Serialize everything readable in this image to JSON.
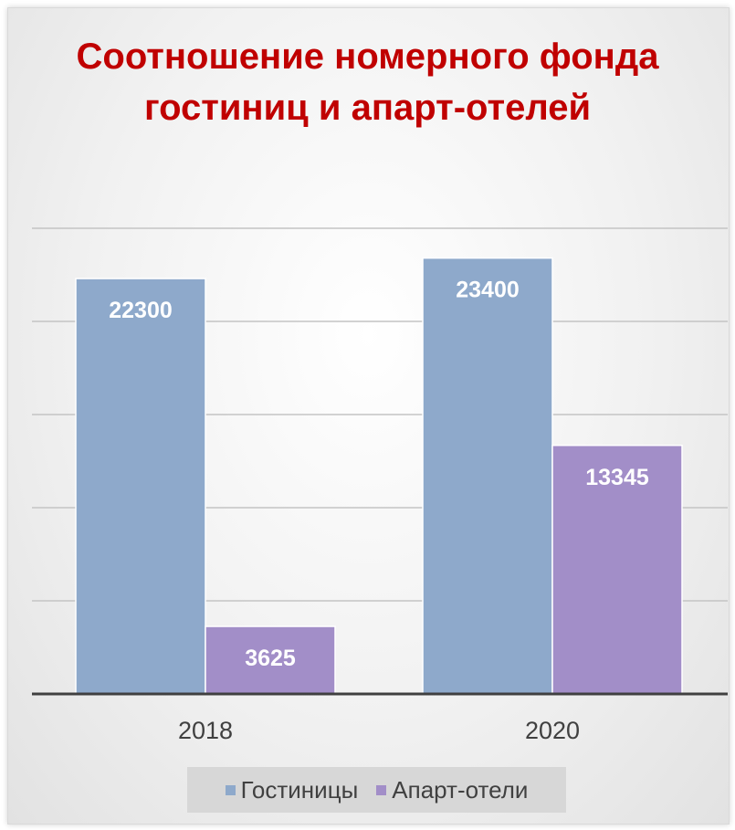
{
  "chart_data": {
    "type": "bar",
    "title": "Соотношение номерного фонда гостиниц и апарт-отелей",
    "categories": [
      "2018",
      "2020"
    ],
    "series": [
      {
        "name": "Гостиницы",
        "values": [
          22300,
          23400
        ],
        "color": "#8ea9cb"
      },
      {
        "name": "Апарт-отели",
        "values": [
          3625,
          13345
        ],
        "color": "#a28ec8"
      }
    ],
    "xlabel": "",
    "ylabel": "",
    "ylim": [
      0,
      25000
    ],
    "grid": true,
    "legend_position": "bottom"
  }
}
